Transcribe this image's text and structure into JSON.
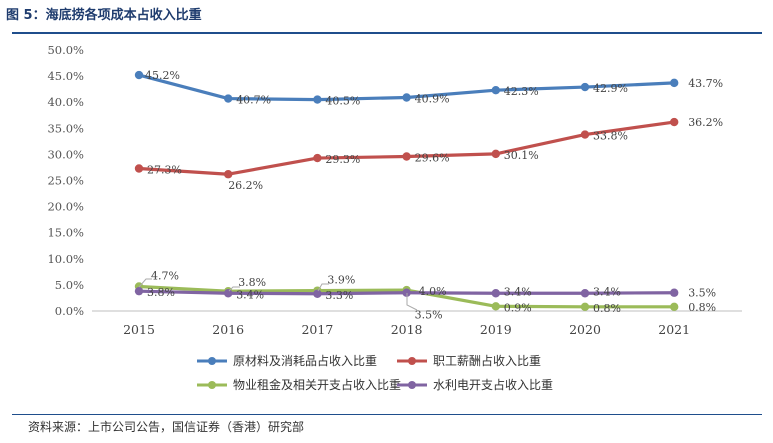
{
  "header": {
    "title": "图 5：海底捞各项成本占收入比重"
  },
  "footer": {
    "source": "资料来源：上市公司公告，国信证券（香港）研究部"
  },
  "chart_data": {
    "type": "line",
    "categories": [
      "2015",
      "2016",
      "2017",
      "2018",
      "2019",
      "2020",
      "2021"
    ],
    "ylim": [
      0,
      50
    ],
    "ytick_labels": [
      "0.0%",
      "5.0%",
      "10.0%",
      "15.0%",
      "20.0%",
      "25.0%",
      "30.0%",
      "35.0%",
      "40.0%",
      "45.0%",
      "50.0%"
    ],
    "grid": false,
    "legend_position": "bottom",
    "series": [
      {
        "name": "原材料及消耗品占收入比重",
        "color": "#4a7ebb",
        "values": [
          45.2,
          40.7,
          40.5,
          40.9,
          42.3,
          42.9,
          43.7
        ],
        "labels": [
          "45.2%",
          "40.7%",
          "40.5%",
          "40.9%",
          "42.3%",
          "42.9%",
          "43.7%"
        ]
      },
      {
        "name": "职工薪酬占收入比重",
        "color": "#c0504d",
        "values": [
          27.3,
          26.2,
          29.3,
          29.6,
          30.1,
          33.8,
          36.2
        ],
        "labels": [
          "27.3%",
          "26.2%",
          "29.3%",
          "29.6%",
          "30.1%",
          "33.8%",
          "36.2%"
        ]
      },
      {
        "name": "物业租金及相关开支占收入比重",
        "color": "#9bbb59",
        "values": [
          4.7,
          3.8,
          3.9,
          4.0,
          0.9,
          0.8,
          0.8
        ],
        "labels": [
          "4.7%",
          "3.8%",
          "3.9%",
          "4.0%",
          "0.9%",
          "0.8%",
          "0.8%"
        ]
      },
      {
        "name": "水利电开支占收入比重",
        "color": "#8064a2",
        "values": [
          3.8,
          3.4,
          3.3,
          3.5,
          3.4,
          3.4,
          3.5
        ],
        "labels": [
          "3.8%",
          "3.4%",
          "3.3%",
          "3.5%",
          "3.4%",
          "3.4%",
          "3.5%"
        ]
      }
    ]
  }
}
